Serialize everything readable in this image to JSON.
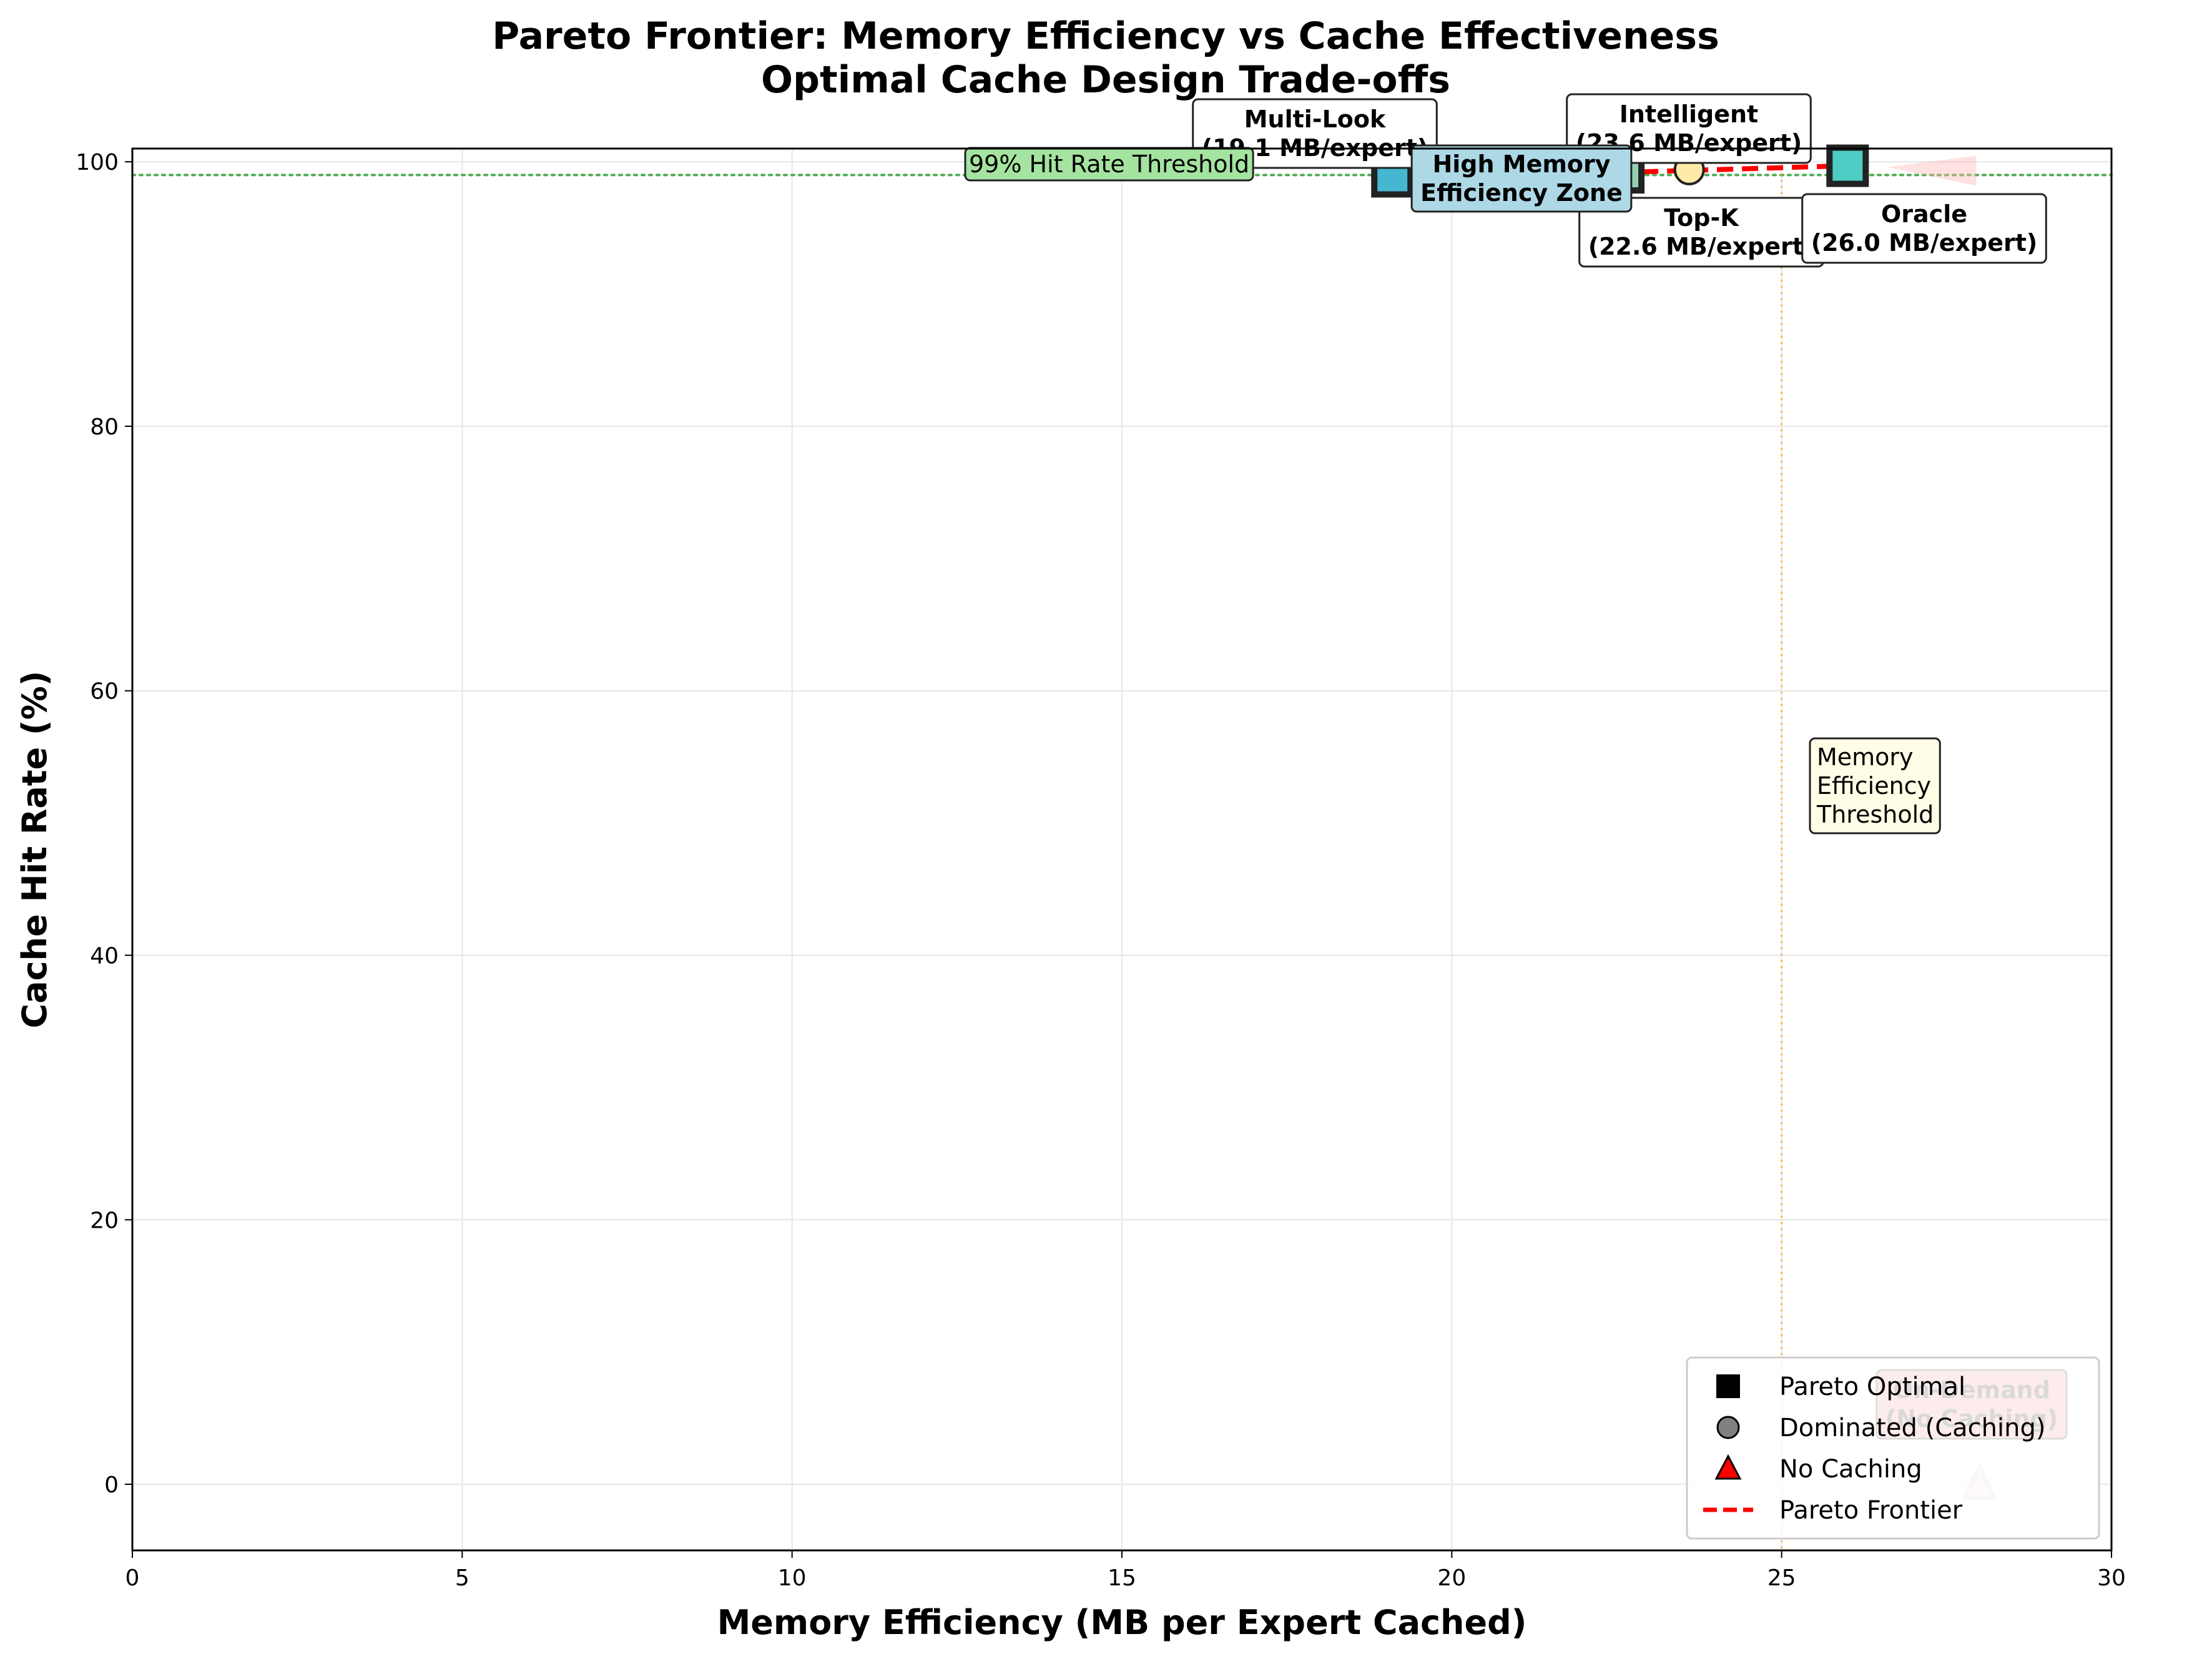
{
  "chart_data": {
    "type": "scatter",
    "title": "Pareto Frontier: Memory Efficiency vs Cache Effectiveness",
    "subtitle": "Optimal Cache Design Trade-offs",
    "xlabel": "Memory Efficiency (MB per Expert Cached)",
    "ylabel": "Cache Hit Rate (%)",
    "xlim": [
      0,
      30
    ],
    "ylim": [
      -5,
      101
    ],
    "xticks": [
      0,
      5,
      10,
      15,
      20,
      25,
      30
    ],
    "yticks": [
      0,
      20,
      40,
      60,
      80,
      100
    ],
    "grid": true,
    "legend_position": "lower-right",
    "points": [
      {
        "name": "Multi-Look",
        "x": 19.1,
        "y": 98.9,
        "marker": "square",
        "category": "pareto",
        "color": "#45b7d1",
        "label_line1": "Multi-Look",
        "label_line2": "(19.1 MB/expert)"
      },
      {
        "name": "Top-K",
        "x": 22.6,
        "y": 99.2,
        "marker": "square",
        "category": "pareto",
        "color": "#96ceb4",
        "label_line1": "Top-K",
        "label_line2": "(22.6 MB/expert)"
      },
      {
        "name": "Intelligent",
        "x": 23.6,
        "y": 99.4,
        "marker": "circle",
        "category": "dominated",
        "color": "#ffeaa7",
        "label_line1": "Intelligent",
        "label_line2": "(23.6 MB/expert)"
      },
      {
        "name": "Oracle",
        "x": 26.0,
        "y": 99.7,
        "marker": "square",
        "category": "pareto",
        "color": "#4ecdc4",
        "label_line1": "Oracle",
        "label_line2": "(26.0 MB/expert)"
      },
      {
        "name": "On-Demand",
        "x": 28.0,
        "y": 0.0,
        "marker": "triangle",
        "category": "no-caching",
        "color": "#ff6b6b",
        "label_line1": "On-Demand",
        "label_line2": "(No Caching)"
      }
    ],
    "pareto_frontier": {
      "x": [
        19.1,
        22.6,
        26.0
      ],
      "y": [
        98.9,
        99.2,
        99.7
      ],
      "color": "#ff0000"
    },
    "hit_rate_threshold": {
      "value": 99,
      "label": "99% Hit Rate Threshold",
      "color": "#4caf50"
    },
    "memory_threshold": {
      "value": 25,
      "label_lines": [
        "Memory",
        "Efficiency",
        "Threshold"
      ],
      "color": "#ffa726"
    },
    "zone_label": {
      "lines": [
        "High Memory",
        "Efficiency Zone"
      ],
      "color": "#add8e6"
    },
    "legend": [
      {
        "label": "Pareto Optimal",
        "marker": "square",
        "color": "#000000"
      },
      {
        "label": "Dominated (Caching)",
        "marker": "circle",
        "color": "#808080"
      },
      {
        "label": "No Caching",
        "marker": "triangle",
        "color": "#ff0000"
      },
      {
        "label": "Pareto Frontier",
        "marker": "dashed-line",
        "color": "#ff0000"
      }
    ]
  }
}
